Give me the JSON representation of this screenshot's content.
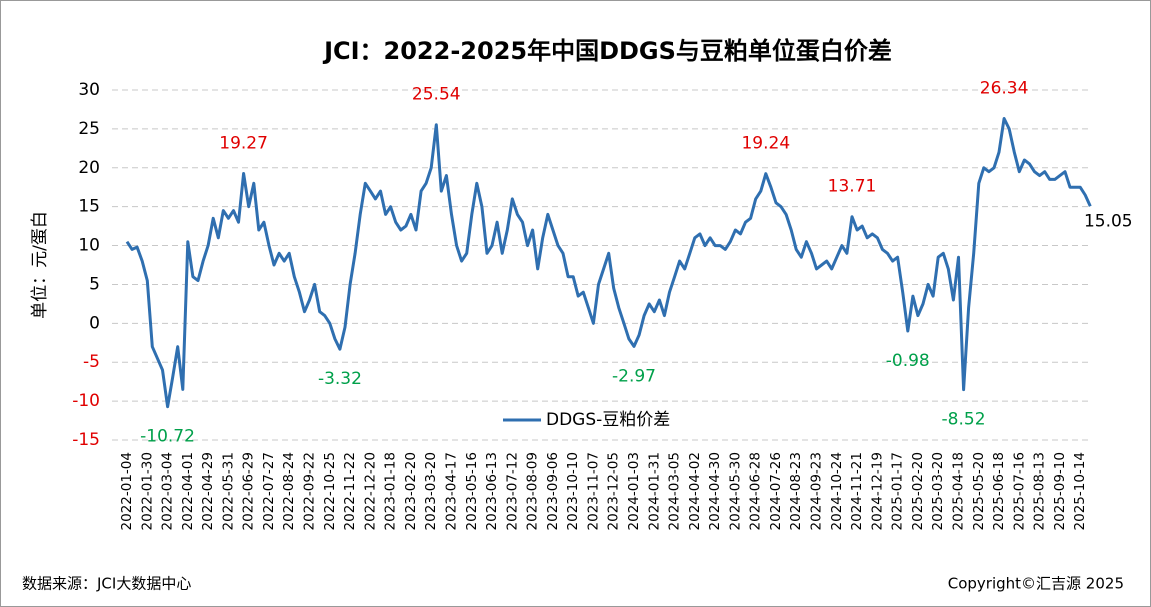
{
  "chart_data": {
    "type": "line",
    "title": "JCI：2022-2025年中国DDGS与豆粕单位蛋白价差",
    "y_label": "单位：元/蛋白",
    "source": "数据来源：JCI大数据中心",
    "copyright": "Copyright©汇吉源 2025",
    "ylim": [
      -15,
      30
    ],
    "yticks": [
      30,
      25,
      20,
      15,
      10,
      5,
      0,
      -5,
      -10,
      -15
    ],
    "negative_tick_color": "#e00000",
    "grid": true,
    "legend": "bottom",
    "categories": [
      "2022-01-04",
      null,
      null,
      null,
      "2022-01-30",
      null,
      null,
      null,
      "2022-03-04",
      null,
      null,
      null,
      "2022-04-01",
      null,
      null,
      null,
      "2022-04-29",
      null,
      null,
      null,
      "2022-05-31",
      null,
      null,
      null,
      "2022-06-29",
      null,
      null,
      null,
      "2022-07-27",
      null,
      null,
      null,
      "2022-08-24",
      null,
      null,
      null,
      "2022-09-22",
      null,
      null,
      null,
      "2022-10-25",
      null,
      null,
      null,
      "2022-11-22",
      null,
      null,
      null,
      "2022-12-20",
      null,
      null,
      null,
      "2023-01-18",
      null,
      null,
      null,
      "2023-02-20",
      null,
      null,
      null,
      "2023-03-20",
      null,
      null,
      null,
      "2023-04-17",
      null,
      null,
      null,
      "2023-05-16",
      null,
      null,
      null,
      "2023-06-13",
      null,
      null,
      null,
      "2023-07-12",
      null,
      null,
      null,
      "2023-08-09",
      null,
      null,
      null,
      "2023-09-06",
      null,
      null,
      null,
      "2023-10-10",
      null,
      null,
      null,
      "2023-11-07",
      null,
      null,
      null,
      "2023-12-05",
      null,
      null,
      null,
      "2024-01-03",
      null,
      null,
      null,
      "2024-01-31",
      null,
      null,
      null,
      "2024-03-05",
      null,
      null,
      null,
      "2024-04-02",
      null,
      null,
      null,
      "2024-04-30",
      null,
      null,
      null,
      "2024-05-30",
      null,
      null,
      null,
      "2024-06-28",
      null,
      null,
      null,
      "2024-07-26",
      null,
      null,
      null,
      "2024-08-23",
      null,
      null,
      null,
      "2024-09-23",
      null,
      null,
      null,
      "2024-10-24",
      null,
      null,
      null,
      "2024-11-21",
      null,
      null,
      null,
      "2024-12-19",
      null,
      null,
      null,
      "2025-01-17",
      null,
      null,
      null,
      "2025-02-20",
      null,
      null,
      null,
      "2025-03-20",
      null,
      null,
      null,
      "2025-04-18",
      null,
      null,
      null,
      "2025-05-20",
      null,
      null,
      null,
      "2025-06-18",
      null,
      null,
      null,
      "2025-07-16",
      null,
      null,
      null,
      "2025-08-13",
      null,
      null,
      null,
      "2025-09-10",
      null,
      null,
      null,
      "2025-10-14",
      null,
      null
    ],
    "series": [
      {
        "name": "DDGS-豆粕价差",
        "color": "#2f6fb0",
        "values": [
          10.5,
          9.5,
          9.8,
          8,
          5.5,
          -3,
          -4.5,
          -6,
          -10.72,
          -7,
          -3,
          -8.5,
          10.5,
          6,
          5.5,
          8,
          10,
          13.5,
          11,
          14.5,
          13.5,
          14.5,
          13,
          19.27,
          15,
          18,
          12,
          13,
          10,
          7.5,
          9,
          8,
          9,
          6,
          4,
          1.5,
          3,
          5,
          1.5,
          1,
          0,
          -2,
          -3.32,
          -0.5,
          5,
          9,
          14,
          18,
          17,
          16,
          17,
          14,
          15,
          13,
          12,
          12.5,
          14,
          12,
          17,
          18,
          20,
          25.54,
          17,
          19,
          14,
          10,
          8,
          9,
          14,
          18,
          15,
          9,
          10,
          13,
          9,
          12,
          16,
          14,
          13,
          10,
          12,
          7,
          11,
          14,
          12,
          10,
          9,
          6,
          6,
          3.5,
          4,
          2,
          0,
          5,
          7,
          9,
          4.5,
          2,
          0,
          -2,
          -2.97,
          -1.5,
          1,
          2.5,
          1.5,
          3,
          1,
          4,
          6,
          8,
          7,
          9,
          11,
          11.5,
          10,
          11,
          10,
          10,
          9.5,
          10.5,
          12,
          11.5,
          13,
          13.5,
          16,
          17,
          19.24,
          17.5,
          15.5,
          15,
          14,
          12,
          9.5,
          8.5,
          10.5,
          9,
          7,
          7.5,
          8,
          7,
          8.5,
          10,
          9,
          13.71,
          12,
          12.5,
          11,
          11.5,
          11,
          9.5,
          9,
          8,
          8.5,
          4,
          -0.98,
          3.5,
          1,
          2.5,
          5,
          3.5,
          8.5,
          9,
          7,
          3,
          8.5,
          -8.52,
          2,
          9,
          18,
          20,
          19.5,
          20,
          22,
          26.34,
          25,
          22,
          19.5,
          21,
          20.5,
          19.5,
          19,
          19.5,
          18.5,
          18.5,
          19,
          19.5,
          17.5,
          17.5,
          17.5,
          16.5,
          15.05
        ]
      }
    ],
    "point_labels": [
      {
        "index": 8,
        "text": "-10.72",
        "color": "#00a04a",
        "position": "below"
      },
      {
        "index": 23,
        "text": "19.27",
        "color": "#e00000",
        "position": "above"
      },
      {
        "index": 42,
        "text": "-3.32",
        "color": "#00a04a",
        "position": "below"
      },
      {
        "index": 61,
        "text": "25.54",
        "color": "#e00000",
        "position": "above"
      },
      {
        "index": 100,
        "text": "-2.97",
        "color": "#00a04a",
        "position": "below"
      },
      {
        "index": 126,
        "text": "19.24",
        "color": "#e00000",
        "position": "above"
      },
      {
        "index": 143,
        "text": "13.71",
        "color": "#e00000",
        "position": "above"
      },
      {
        "index": 154,
        "text": "-0.98",
        "color": "#00a04a",
        "position": "below"
      },
      {
        "index": 165,
        "text": "-8.52",
        "color": "#00a04a",
        "position": "below"
      },
      {
        "index": 173,
        "text": "26.34",
        "color": "#e00000",
        "position": "above"
      },
      {
        "index": 190,
        "text": "15.05",
        "color": "#000000",
        "position": "right"
      }
    ]
  }
}
